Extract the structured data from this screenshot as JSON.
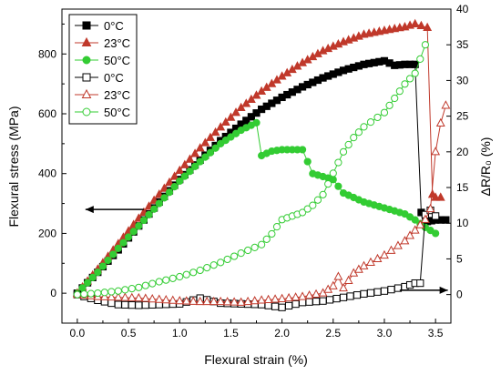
{
  "chart_data": {
    "type": "line",
    "xlabel": "Flexural strain (%)",
    "ylabel_left": "Flexural stress (MPa)",
    "ylabel_right": "ΔR/R₀ (%)",
    "xlim": [
      -0.15,
      3.65
    ],
    "ylim_left": [
      -100,
      950
    ],
    "ylim_right": [
      -4,
      40
    ],
    "x_ticks": [
      "0.0",
      "0.5",
      "1.0",
      "1.5",
      "2.0",
      "2.5",
      "3.0",
      "3.5"
    ],
    "y_left_ticks": [
      "0",
      "200",
      "400",
      "600",
      "800"
    ],
    "y_right_ticks": [
      "0",
      "5",
      "10",
      "15",
      "20",
      "25",
      "30",
      "35",
      "40"
    ],
    "grid": false,
    "legend_position": "top-left",
    "series": [
      {
        "name": "0°C",
        "axis": "left",
        "marker": "square",
        "filled": true,
        "color": "#000000",
        "x": [
          0,
          0.2,
          0.4,
          0.6,
          0.8,
          1.0,
          1.2,
          1.4,
          1.6,
          1.8,
          2.0,
          2.2,
          2.4,
          2.6,
          2.8,
          3.0,
          3.1,
          3.2,
          3.3,
          3.36,
          3.38,
          3.42,
          3.5,
          3.6
        ],
        "y": [
          0,
          70,
          145,
          225,
          305,
          380,
          445,
          510,
          565,
          615,
          655,
          690,
          720,
          745,
          765,
          777,
          762,
          765,
          765,
          270,
          232,
          240,
          245,
          245
        ]
      },
      {
        "name": "23°C",
        "axis": "left",
        "marker": "triangle",
        "filled": true,
        "color": "#c0392b",
        "x": [
          0,
          0.2,
          0.4,
          0.6,
          0.8,
          1.0,
          1.2,
          1.4,
          1.6,
          1.8,
          2.0,
          2.2,
          2.4,
          2.6,
          2.8,
          3.0,
          3.2,
          3.3,
          3.42,
          3.47,
          3.5,
          3.55
        ],
        "y": [
          0,
          80,
          165,
          250,
          330,
          410,
          485,
          555,
          620,
          675,
          725,
          770,
          810,
          840,
          865,
          878,
          890,
          900,
          888,
          330,
          320,
          320
        ]
      },
      {
        "name": "50°C",
        "axis": "left",
        "marker": "circle",
        "filled": true,
        "color": "#33cc33",
        "x": [
          0,
          0.2,
          0.4,
          0.6,
          0.8,
          1.0,
          1.2,
          1.4,
          1.6,
          1.75,
          1.8,
          1.9,
          2.0,
          2.1,
          2.2,
          2.3,
          2.4,
          2.5,
          2.6,
          2.8,
          3.0,
          3.2,
          3.3,
          3.4,
          3.5
        ],
        "y": [
          0,
          70,
          150,
          225,
          300,
          375,
          440,
          500,
          545,
          570,
          460,
          475,
          480,
          480,
          480,
          400,
          390,
          380,
          335,
          305,
          285,
          265,
          245,
          220,
          200
        ]
      },
      {
        "name": "0°C",
        "axis": "right",
        "marker": "square",
        "filled": false,
        "color": "#000000",
        "x": [
          0,
          0.2,
          0.4,
          0.6,
          0.8,
          1.0,
          1.2,
          1.4,
          1.6,
          1.8,
          2.0,
          2.2,
          2.4,
          2.6,
          2.8,
          3.0,
          3.2,
          3.3,
          3.35,
          3.4,
          3.45,
          3.5
        ],
        "y": [
          0,
          -0.8,
          -1.4,
          -1.5,
          -1.4,
          -1.3,
          -0.5,
          -1.2,
          -1.3,
          -1.4,
          -1.8,
          -1.1,
          -0.9,
          -0.4,
          0.1,
          0.5,
          1.1,
          1.6,
          1.6,
          11.2,
          11.8,
          11.0
        ]
      },
      {
        "name": "23°C",
        "axis": "right",
        "marker": "triangle",
        "filled": false,
        "color": "#c0392b",
        "x": [
          0,
          0.2,
          0.4,
          0.6,
          0.8,
          1.0,
          1.2,
          1.4,
          1.6,
          1.8,
          2.0,
          2.2,
          2.4,
          2.5,
          2.55,
          2.6,
          2.7,
          2.8,
          3.0,
          3.2,
          3.3,
          3.4,
          3.45,
          3.5,
          3.55,
          3.6
        ],
        "y": [
          0,
          -0.3,
          -0.4,
          -0.5,
          -0.7,
          -0.9,
          -1.0,
          -1.0,
          -1.1,
          -0.8,
          -0.6,
          -0.3,
          0.2,
          1.2,
          2.5,
          0.9,
          3.0,
          4.0,
          5.5,
          7.5,
          9.0,
          10.5,
          12.0,
          20.0,
          24.0,
          26.5
        ]
      },
      {
        "name": "50°C",
        "axis": "right",
        "marker": "circle",
        "filled": false,
        "color": "#33cc33",
        "x": [
          0,
          0.2,
          0.4,
          0.6,
          0.8,
          1.0,
          1.2,
          1.4,
          1.6,
          1.8,
          1.9,
          2.0,
          2.1,
          2.2,
          2.3,
          2.4,
          2.5,
          2.6,
          2.7,
          2.8,
          3.0,
          3.1,
          3.2,
          3.3,
          3.35,
          3.4
        ],
        "y": [
          0,
          0.2,
          0.5,
          1.0,
          1.8,
          2.5,
          3.4,
          4.5,
          5.8,
          7.0,
          8.5,
          10.5,
          11.0,
          11.5,
          12.5,
          14.0,
          17.0,
          20.0,
          22.0,
          23.5,
          25.5,
          27.5,
          29.5,
          31.0,
          33.0,
          35.0
        ]
      }
    ],
    "annotations": [
      {
        "type": "arrow",
        "direction": "left",
        "axis": "left",
        "x_from": 0.65,
        "x_to": 0.08,
        "y": 280
      },
      {
        "type": "arrow",
        "direction": "right",
        "axis": "right",
        "x_from": 3.15,
        "x_to": 3.62,
        "y": 0.6
      }
    ]
  }
}
